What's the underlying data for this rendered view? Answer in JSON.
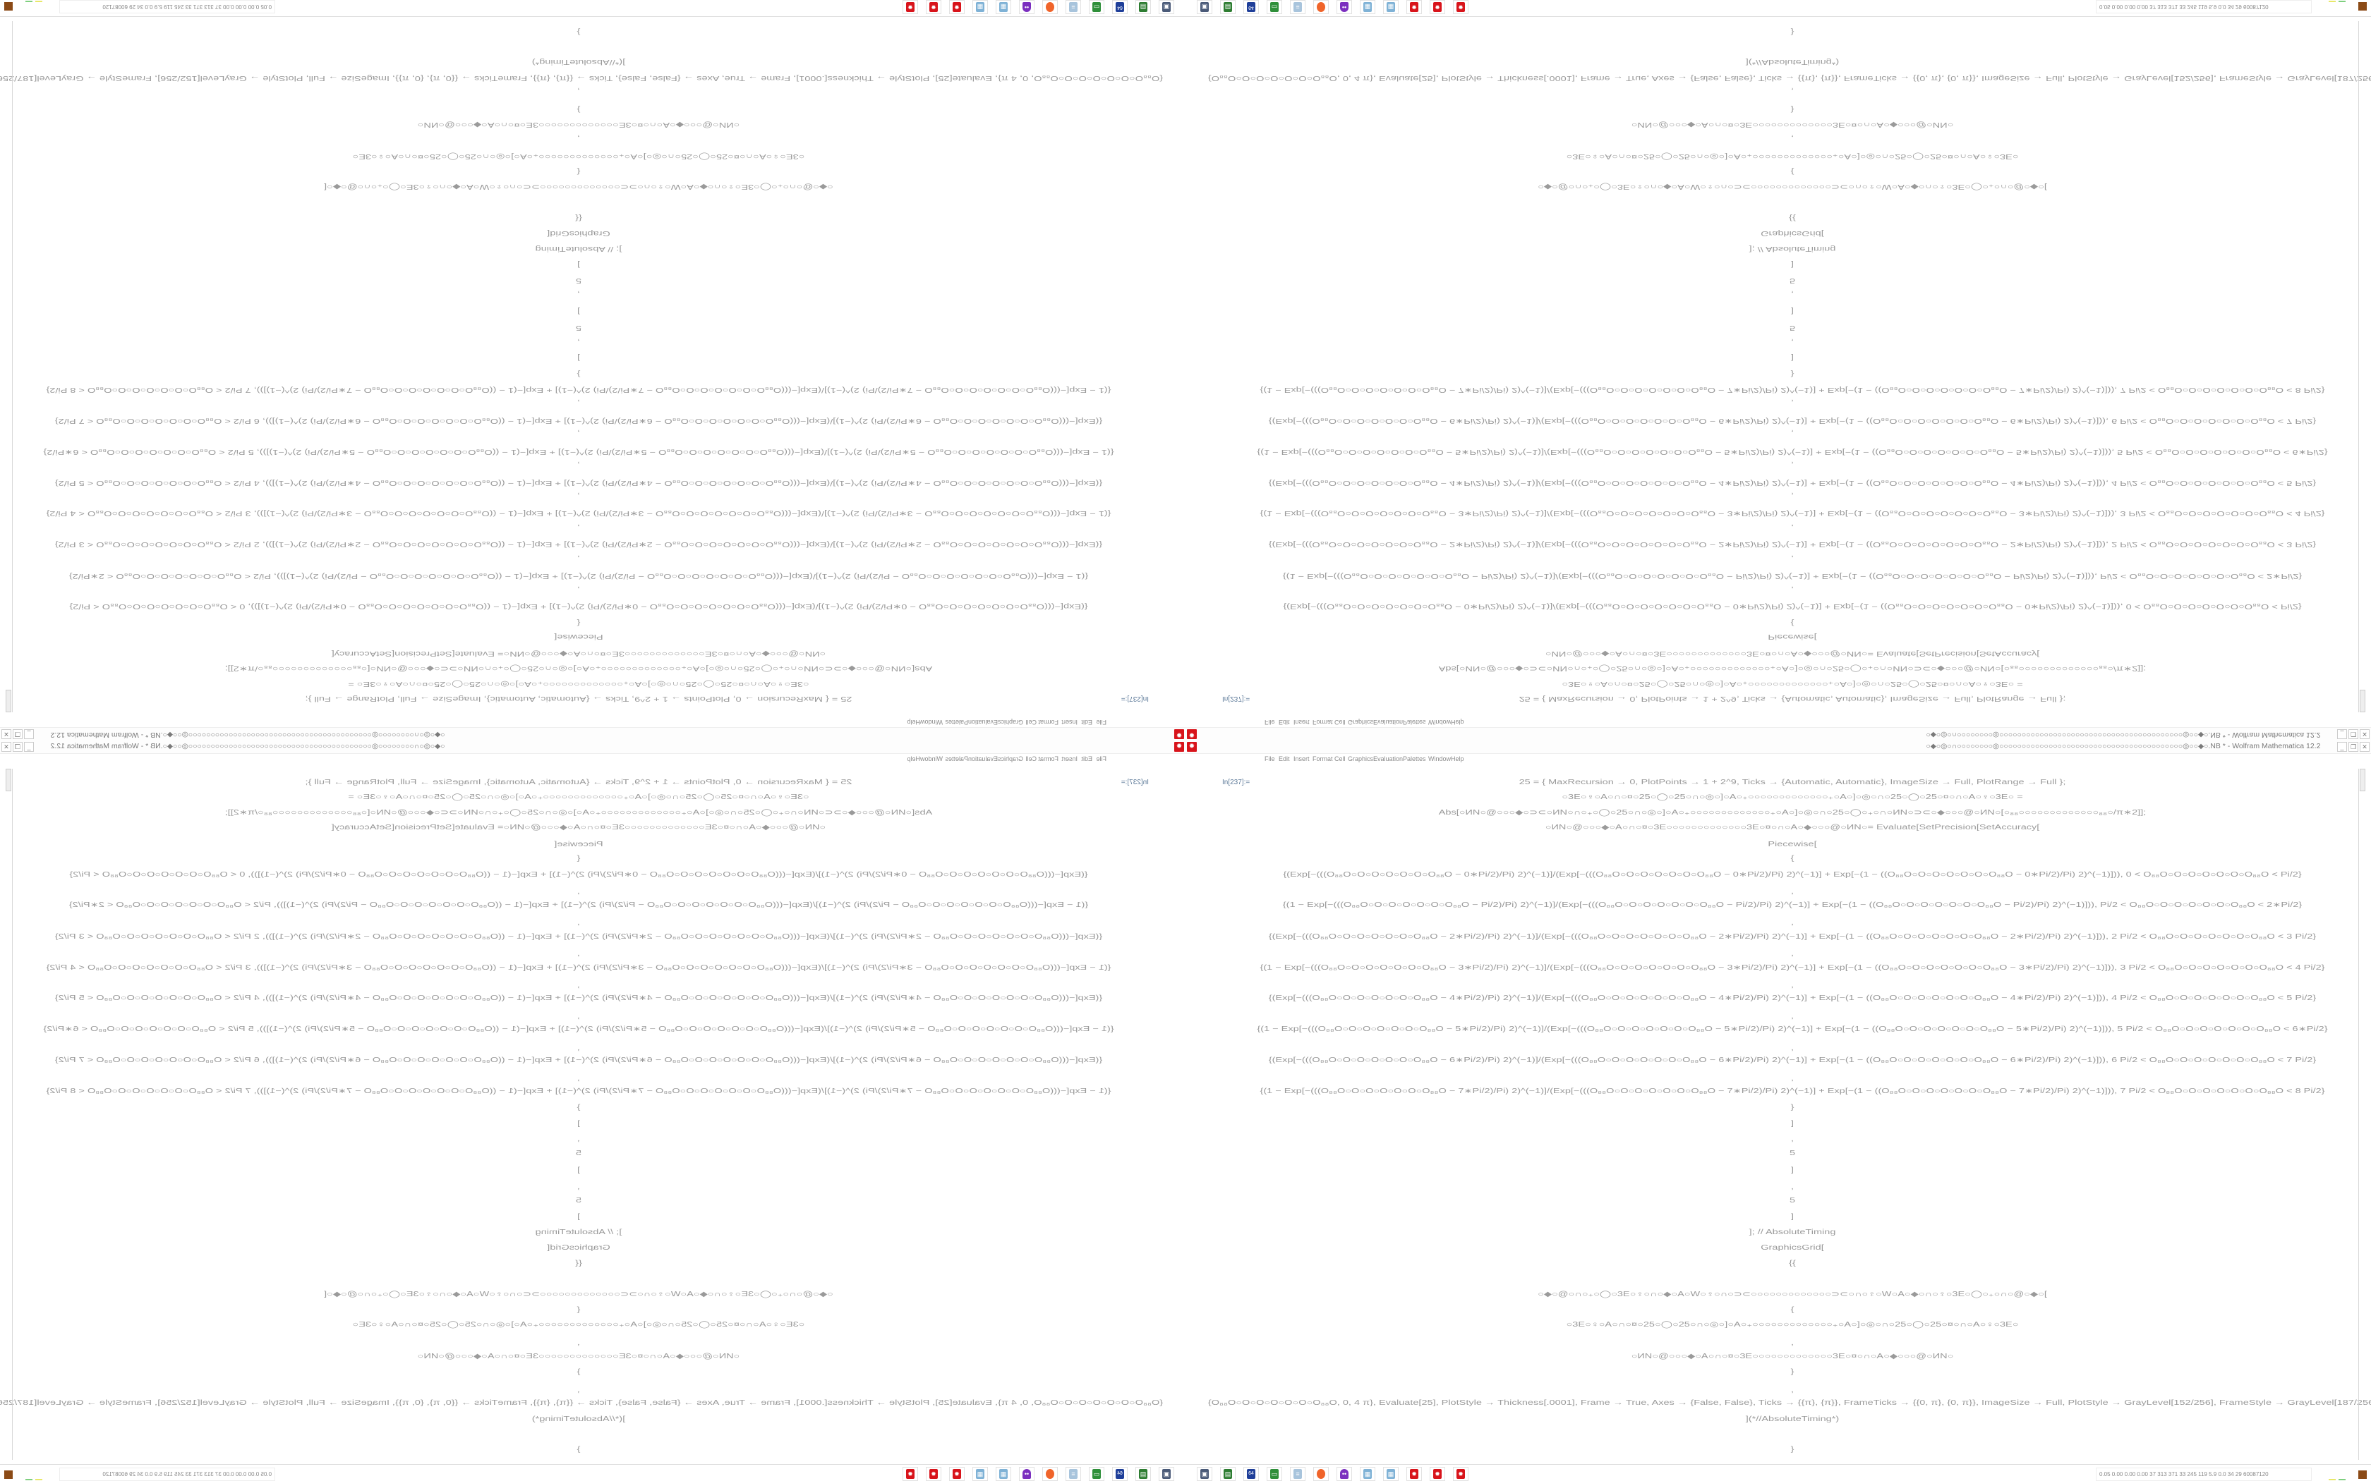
{
  "window": {
    "title": "○◆○◎○∩○○○○○○○○◎○○○○○○○○○○○○○○○○○○○○○○○○○○○○○○○○○○○○○○○○○◎○○◆○.NB * - Wolfram Mathematica 12.2",
    "minimize": "_",
    "restore": "❐",
    "close": "✕"
  },
  "menu": [
    "File",
    "Edit",
    "Insert",
    "Format",
    "Cell",
    "Graphics",
    "Evaluation",
    "Palettes",
    "Window",
    "Help"
  ],
  "cell_label": "In[237]:=",
  "code": {
    "head": [
      "25 = {   MaxRecursion → 0, PlotPoints → 1 + 2^9, Ticks → {Automatic, Automatic}, ImageSize → Full, PlotRange → Full   };",
      "○3E○♀○A○∩○¤○25○◯○25○∩○◎○]○A○₊○○○○○○○○○○○○○₊○A○]○◎○∩○25○◯○25○¤○∩○A○♀○3E○   =",
      "Abs[○ИN○@○○○◆○⊃⊂○ИN○∩○₊○◯○25○∩○◎○]○A○₊○○○○○○○○○○○○○₊○A○]○◎○∩○25○◯○₊○∩○ИN○⊃⊂○◆○○○@○ИN○[○₈₈○○○○○○○○○○○○○₈₈○/π∗2]];",
      "○ИN○@○○○◆○A○∩○¤○3E○○○○○○○○○○○○○3E○¤○∩○A○◆○○○@○ИN○= Evaluate[SetPrecision[SetAccuracy[",
      "Piecewise[",
      "{"
    ],
    "rows": [
      "{(Exp[−(((O₈₈O○O○O○O○O○O○O₈₈O − 0∗Pi/2)/Pi) 2)^(−1)]/(Exp[−(((O₈₈O○O○O○O○O○O○O₈₈O − 0∗Pi/2)/Pi) 2)^(−1)] + Exp[−(1 − ((O₈₈O○O○O○O○O○O○O₈₈O − 0∗Pi/2)/Pi) 2)^(−1)])), 0 < O₈₈O○O○O○O○O○O○O₈₈O < Pi/2}",
      "{(1 − Exp[−(((O₈₈O○O○O○O○O○O○O₈₈O − Pi/2)/Pi) 2)^(−1)]/(Exp[−(((O₈₈O○O○O○O○O○O○O₈₈O − Pi/2)/Pi) 2)^(−1)] + Exp[−(1 − ((O₈₈O○O○O○O○O○O○O₈₈O − Pi/2)/Pi) 2)^(−1)])), Pi/2 < O₈₈O○O○O○O○O○O○O₈₈O < 2∗Pi/2}",
      "{(Exp[−(((O₈₈O○O○O○O○O○O○O₈₈O − 2∗Pi/2)/Pi) 2)^(−1)]/(Exp[−(((O₈₈O○O○O○O○O○O○O₈₈O − 2∗Pi/2)/Pi) 2)^(−1)] + Exp[−(1 − ((O₈₈O○O○O○O○O○O○O₈₈O − 2∗Pi/2)/Pi) 2)^(−1)])), 2 Pi/2 < O₈₈O○O○O○O○O○O○O₈₈O < 3 Pi/2}",
      "{(1 − Exp[−(((O₈₈O○O○O○O○O○O○O₈₈O − 3∗Pi/2)/Pi) 2)^(−1)]/(Exp[−(((O₈₈O○O○O○O○O○O○O₈₈O − 3∗Pi/2)/Pi) 2)^(−1)] + Exp[−(1 − ((O₈₈O○O○O○O○O○O○O₈₈O − 3∗Pi/2)/Pi) 2)^(−1)])), 3 Pi/2 < O₈₈O○O○O○O○O○O○O₈₈O < 4 Pi/2}",
      "{(Exp[−(((O₈₈O○O○O○O○O○O○O₈₈O − 4∗Pi/2)/Pi) 2)^(−1)]/(Exp[−(((O₈₈O○O○O○O○O○O○O₈₈O − 4∗Pi/2)/Pi) 2)^(−1)] + Exp[−(1 − ((O₈₈O○O○O○O○O○O○O₈₈O − 4∗Pi/2)/Pi) 2)^(−1)])), 4 Pi/2 < O₈₈O○O○O○O○O○O○O₈₈O < 5 Pi/2}",
      "{(1 − Exp[−(((O₈₈O○O○O○O○O○O○O₈₈O − 5∗Pi/2)/Pi) 2)^(−1)]/(Exp[−(((O₈₈O○O○O○O○O○O○O₈₈O − 5∗Pi/2)/Pi) 2)^(−1)] + Exp[−(1 − ((O₈₈O○O○O○O○O○O○O₈₈O − 5∗Pi/2)/Pi) 2)^(−1)])), 5 Pi/2 < O₈₈O○O○O○O○O○O○O₈₈O < 6∗Pi/2}",
      "{(Exp[−(((O₈₈O○O○O○O○O○O○O₈₈O − 6∗Pi/2)/Pi) 2)^(−1)]/(Exp[−(((O₈₈O○O○O○O○O○O○O₈₈O − 6∗Pi/2)/Pi) 2)^(−1)] + Exp[−(1 − ((O₈₈O○O○O○O○O○O○O₈₈O − 6∗Pi/2)/Pi) 2)^(−1)])), 6 Pi/2 < O₈₈O○O○O○O○O○O○O₈₈O < 7 Pi/2}",
      "{(1 − Exp[−(((O₈₈O○O○O○O○O○O○O₈₈O − 7∗Pi/2)/Pi) 2)^(−1)]/(Exp[−(((O₈₈O○O○O○O○O○O○O₈₈O − 7∗Pi/2)/Pi) 2)^(−1)] + Exp[−(1 − ((O₈₈O○O○O○O○O○O○O₈₈O − 7∗Pi/2)/Pi) 2)^(−1)])), 7 Pi/2 < O₈₈O○O○O○O○O○O○O₈₈O < 8 Pi/2}"
    ],
    "separator": ",",
    "tail": [
      "}",
      "]",
      ",",
      "5",
      "]",
      ",",
      "5",
      "]",
      "]; // AbsoluteTiming",
      "GraphicsGrid[",
      "{{",
      "○◆○@○∩○₊○◯○3E○♀○∩○◆○A○W○♀○∩○⊃⊂○○○○○○○○○○○○○⊃⊂○∩○♀○W○A○◆○∩○♀○3E○◯○₊○∩○@○◆○[",
      "{",
      "○3E○♀○A○∩○¤○25○◯○25○∩○◎○]○A○₊○○○○○○○○○○○○○₊○A○]○◎○∩○25○◯○25○¤○∩○A○♀○3E○",
      ",",
      "○ИN○@○○○◆○A○∩○¤○3E○○○○○○○○○○○○○3E○¤○∩○A○◆○○○@○ИN○",
      "}",
      ",",
      "{O₈₈O○O○O○O○O○O○O₈₈O, 0, 4 π}, Evaluate[25], PlotStyle → Thickness[.0001], Frame → True, Axes → {False, False}, Ticks → {{π}, {π}}, FrameTicks → {{0, π}, {0, π}}, ImageSize → Full, PlotStyle → GrayLevel[152/256], FrameStyle → GrayLevel[187/256]",
      "](*//AbsoluteTiming*)",
      "}"
    ]
  },
  "taskbar": {
    "icons": [
      "video-monitor",
      "green-device",
      "floppy-64",
      "terminal-monitor",
      "notepad",
      "firefox",
      "purple-ghost",
      "calculator",
      "calculator",
      "mathematica",
      "mathematica",
      "mathematica"
    ],
    "icon_colors": [
      "#4a5a78",
      "#2e7d32",
      "#1f3f99",
      "#2f8f3a",
      "#a8c4dc",
      "#f0642a",
      "#7b2fbf",
      "#7fb2d6",
      "#7fb2d6",
      "#d8141b",
      "#d8141b",
      "#d8141b"
    ],
    "floppy_label": "64",
    "tray_text": "0.05 0.00 0.00 0.00   37   313   371   33   245   119   5.9   0.0   34   29   60087120"
  },
  "colors": {
    "accent": "#d8141b",
    "text": "#9a9a9a",
    "cell_label": "#5d7a99"
  }
}
